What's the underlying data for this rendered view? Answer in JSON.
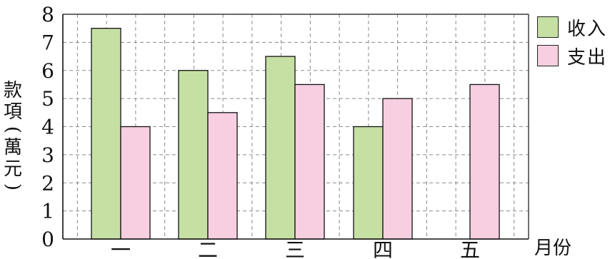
{
  "chart_data": {
    "type": "bar",
    "categories": [
      "一",
      "二",
      "三",
      "四",
      "五"
    ],
    "xlabel": "月份",
    "ylabel": [
      "款",
      "項",
      "(",
      "萬",
      "元",
      ")"
    ],
    "ylim": [
      0,
      8
    ],
    "yticks": [
      0,
      1,
      2,
      3,
      4,
      5,
      6,
      7,
      8
    ],
    "grid": true,
    "legend_position": "right",
    "series": [
      {
        "name": "收入",
        "color": "#c6e0a4",
        "values": [
          7.5,
          6,
          6.5,
          4,
          0
        ]
      },
      {
        "name": "支出",
        "color": "#f7cfe0",
        "values": [
          4,
          4.5,
          5.5,
          5,
          5.5
        ]
      }
    ]
  }
}
